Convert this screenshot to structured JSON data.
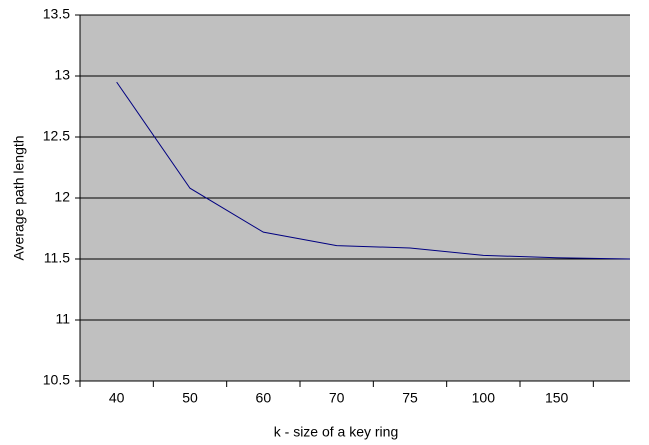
{
  "chart_data": {
    "type": "line",
    "x_label": "k - size of a key ring",
    "y_label": "Average path length",
    "categories": [
      "40",
      "50",
      "60",
      "70",
      "75",
      "100",
      "150",
      null
    ],
    "series": [
      {
        "name": "Average path length",
        "color": "#000080",
        "values": [
          12.95,
          12.08,
          11.72,
          11.61,
          11.59,
          11.53,
          11.51,
          11.5
        ]
      }
    ],
    "ylim": [
      10.5,
      13.5
    ],
    "yticks": [
      10.5,
      11,
      11.5,
      12,
      12.5,
      13,
      13.5
    ],
    "grid": true,
    "plot_background": "#c0c0c0"
  }
}
